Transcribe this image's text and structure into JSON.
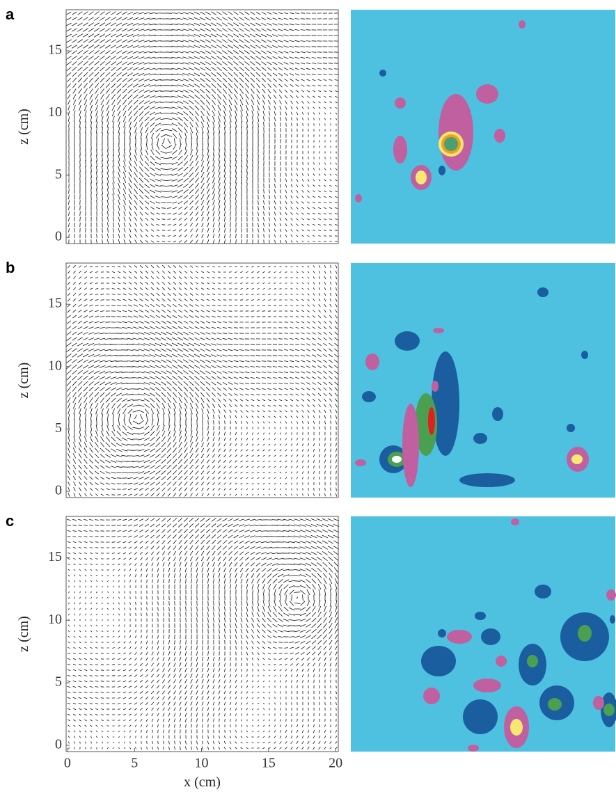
{
  "panel_labels": [
    "a",
    "b",
    "c"
  ],
  "chart_data": [
    {
      "type": "quiver",
      "ylabel": "z (cm)",
      "xlim": [
        -0.1,
        20.2
      ],
      "ylim": [
        -0.5,
        18.3
      ],
      "yticks": [
        0,
        5,
        10,
        15
      ]
    },
    {
      "type": "quiver",
      "ylabel": "z (cm)",
      "xlim": [
        -0.1,
        20.2
      ],
      "ylim": [
        -0.5,
        18.3
      ],
      "yticks": [
        0,
        5,
        10,
        15
      ]
    },
    {
      "type": "quiver",
      "ylabel": "z (cm)",
      "xlabel": "x (cm)",
      "xlim": [
        -0.1,
        20.2
      ],
      "ylim": [
        -0.5,
        18.3
      ],
      "yticks": [
        0,
        5,
        10,
        15
      ],
      "xticks": [
        0,
        5,
        10,
        15,
        20
      ]
    }
  ]
}
